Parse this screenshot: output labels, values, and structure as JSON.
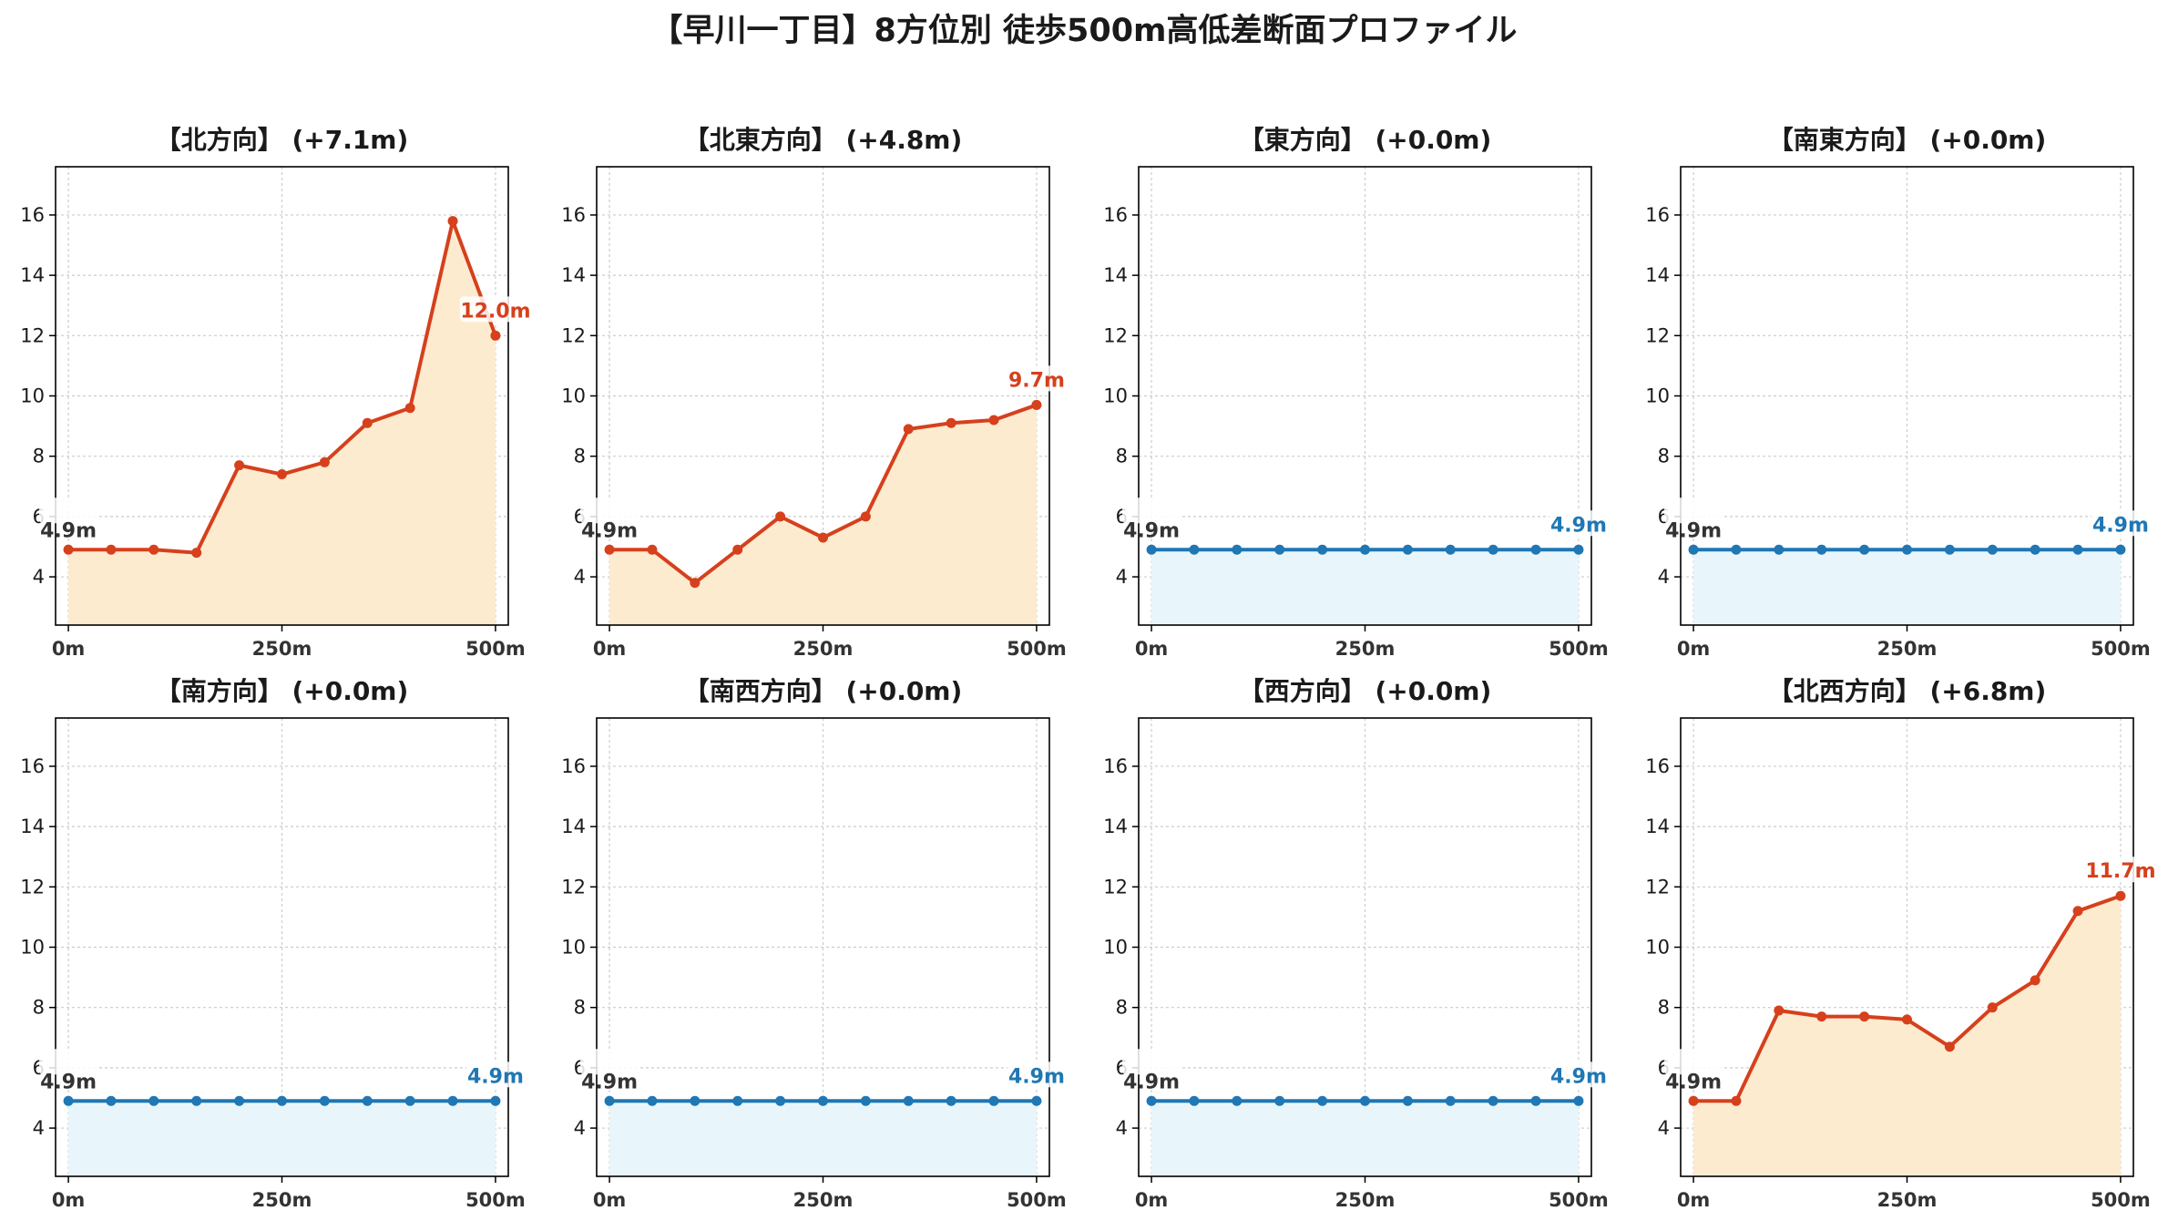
{
  "figure": {
    "suptitle": "【早川一丁目】8方位別 徒歩500m高低差断面プロファイル"
  },
  "colors": {
    "rise_line": "#d6401c",
    "rise_fill": "#fdebd0",
    "flat_line": "#1f77b4",
    "flat_fill": "#e8f6fc",
    "grid": "#cccccc",
    "axis": "#000000"
  },
  "chart_data": [
    {
      "type": "area",
      "title": "【北方向】 (+7.1m)",
      "x": [
        0,
        50,
        100,
        150,
        200,
        250,
        300,
        350,
        400,
        450,
        500
      ],
      "values": [
        4.9,
        4.9,
        4.9,
        4.8,
        7.7,
        7.4,
        7.8,
        9.1,
        9.6,
        15.8,
        12.0
      ],
      "start_label": "4.9m",
      "end_label": "12.0m",
      "style": "rise",
      "xticks": [
        "0m",
        "250m",
        "500m"
      ],
      "yticks": [
        "4",
        "6",
        "8",
        "10",
        "12",
        "14",
        "16"
      ],
      "xlim": [
        -15,
        515
      ],
      "ylim": [
        2.4,
        17.6
      ],
      "grid": true
    },
    {
      "type": "area",
      "title": "【北東方向】 (+4.8m)",
      "x": [
        0,
        50,
        100,
        150,
        200,
        250,
        300,
        350,
        400,
        450,
        500
      ],
      "values": [
        4.9,
        4.9,
        3.8,
        4.9,
        6.0,
        5.3,
        6.0,
        8.9,
        9.1,
        9.2,
        9.7
      ],
      "start_label": "4.9m",
      "end_label": "9.7m",
      "style": "rise",
      "xticks": [
        "0m",
        "250m",
        "500m"
      ],
      "yticks": [
        "4",
        "6",
        "8",
        "10",
        "12",
        "14",
        "16"
      ],
      "xlim": [
        -15,
        515
      ],
      "ylim": [
        2.4,
        17.6
      ],
      "grid": true
    },
    {
      "type": "area",
      "title": "【東方向】 (+0.0m)",
      "x": [
        0,
        50,
        100,
        150,
        200,
        250,
        300,
        350,
        400,
        450,
        500
      ],
      "values": [
        4.9,
        4.9,
        4.9,
        4.9,
        4.9,
        4.9,
        4.9,
        4.9,
        4.9,
        4.9,
        4.9
      ],
      "start_label": "4.9m",
      "end_label": "4.9m",
      "style": "flat",
      "xticks": [
        "0m",
        "250m",
        "500m"
      ],
      "yticks": [
        "4",
        "6",
        "8",
        "10",
        "12",
        "14",
        "16"
      ],
      "xlim": [
        -15,
        515
      ],
      "ylim": [
        2.4,
        17.6
      ],
      "grid": true
    },
    {
      "type": "area",
      "title": "【南東方向】 (+0.0m)",
      "x": [
        0,
        50,
        100,
        150,
        200,
        250,
        300,
        350,
        400,
        450,
        500
      ],
      "values": [
        4.9,
        4.9,
        4.9,
        4.9,
        4.9,
        4.9,
        4.9,
        4.9,
        4.9,
        4.9,
        4.9
      ],
      "start_label": "4.9m",
      "end_label": "4.9m",
      "style": "flat",
      "xticks": [
        "0m",
        "250m",
        "500m"
      ],
      "yticks": [
        "4",
        "6",
        "8",
        "10",
        "12",
        "14",
        "16"
      ],
      "xlim": [
        -15,
        515
      ],
      "ylim": [
        2.4,
        17.6
      ],
      "grid": true
    },
    {
      "type": "area",
      "title": "【南方向】 (+0.0m)",
      "x": [
        0,
        50,
        100,
        150,
        200,
        250,
        300,
        350,
        400,
        450,
        500
      ],
      "values": [
        4.9,
        4.9,
        4.9,
        4.9,
        4.9,
        4.9,
        4.9,
        4.9,
        4.9,
        4.9,
        4.9
      ],
      "start_label": "4.9m",
      "end_label": "4.9m",
      "style": "flat",
      "xticks": [
        "0m",
        "250m",
        "500m"
      ],
      "yticks": [
        "4",
        "6",
        "8",
        "10",
        "12",
        "14",
        "16"
      ],
      "xlim": [
        -15,
        515
      ],
      "ylim": [
        2.4,
        17.6
      ],
      "grid": true
    },
    {
      "type": "area",
      "title": "【南西方向】 (+0.0m)",
      "x": [
        0,
        50,
        100,
        150,
        200,
        250,
        300,
        350,
        400,
        450,
        500
      ],
      "values": [
        4.9,
        4.9,
        4.9,
        4.9,
        4.9,
        4.9,
        4.9,
        4.9,
        4.9,
        4.9,
        4.9
      ],
      "start_label": "4.9m",
      "end_label": "4.9m",
      "style": "flat",
      "xticks": [
        "0m",
        "250m",
        "500m"
      ],
      "yticks": [
        "4",
        "6",
        "8",
        "10",
        "12",
        "14",
        "16"
      ],
      "xlim": [
        -15,
        515
      ],
      "ylim": [
        2.4,
        17.6
      ],
      "grid": true
    },
    {
      "type": "area",
      "title": "【西方向】 (+0.0m)",
      "x": [
        0,
        50,
        100,
        150,
        200,
        250,
        300,
        350,
        400,
        450,
        500
      ],
      "values": [
        4.9,
        4.9,
        4.9,
        4.9,
        4.9,
        4.9,
        4.9,
        4.9,
        4.9,
        4.9,
        4.9
      ],
      "start_label": "4.9m",
      "end_label": "4.9m",
      "style": "flat",
      "xticks": [
        "0m",
        "250m",
        "500m"
      ],
      "yticks": [
        "4",
        "6",
        "8",
        "10",
        "12",
        "14",
        "16"
      ],
      "xlim": [
        -15,
        515
      ],
      "ylim": [
        2.4,
        17.6
      ],
      "grid": true
    },
    {
      "type": "area",
      "title": "【北西方向】 (+6.8m)",
      "x": [
        0,
        50,
        100,
        150,
        200,
        250,
        300,
        350,
        400,
        450,
        500
      ],
      "values": [
        4.9,
        4.9,
        7.9,
        7.7,
        7.7,
        7.6,
        6.7,
        8.0,
        8.9,
        11.2,
        11.7
      ],
      "start_label": "4.9m",
      "end_label": "11.7m",
      "style": "rise",
      "xticks": [
        "0m",
        "250m",
        "500m"
      ],
      "yticks": [
        "4",
        "6",
        "8",
        "10",
        "12",
        "14",
        "16"
      ],
      "xlim": [
        -15,
        515
      ],
      "ylim": [
        2.4,
        17.6
      ],
      "grid": true
    }
  ]
}
